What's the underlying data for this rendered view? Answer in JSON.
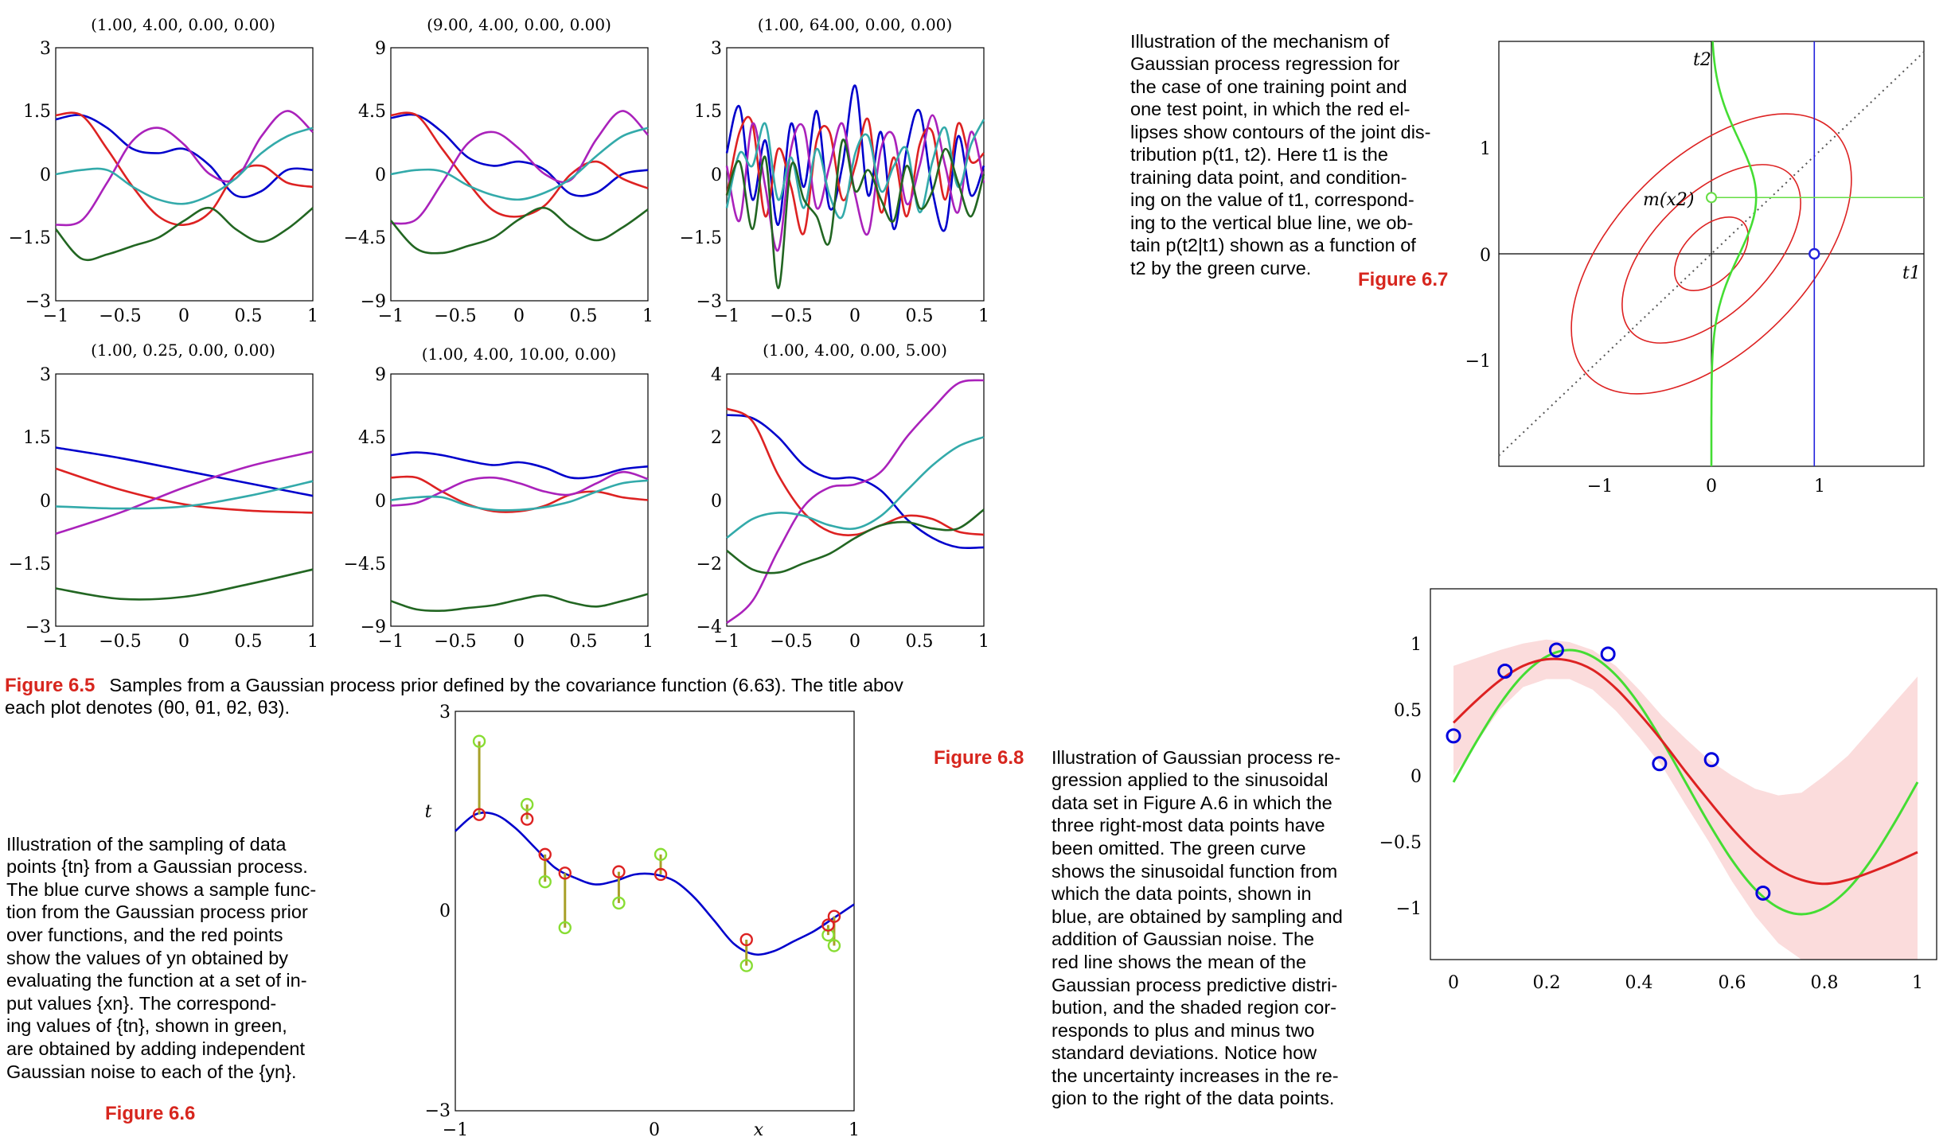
{
  "fig65": {
    "label": "Figure 6.5",
    "caption_line1": "Samples from a Gaussian process prior defined by the covariance function (6.63). The title abov",
    "caption_line2": "each plot denotes (θ0, θ1, θ2, θ3).",
    "panels": [
      {
        "title": "(1.00, 4.00, 0.00, 0.00)",
        "ylim": [
          -3,
          3
        ],
        "yticks": [
          "3",
          "1.5",
          "0",
          "−1.5",
          "−3"
        ]
      },
      {
        "title": "(9.00, 4.00, 0.00, 0.00)",
        "ylim": [
          -9,
          9
        ],
        "yticks": [
          "9",
          "4.5",
          "0",
          "−4.5",
          "−9"
        ]
      },
      {
        "title": "(1.00, 64.00, 0.00, 0.00)",
        "ylim": [
          -3,
          3
        ],
        "yticks": [
          "3",
          "1.5",
          "0",
          "−1.5",
          "−3"
        ]
      },
      {
        "title": "(1.00, 0.25, 0.00, 0.00)",
        "ylim": [
          -3,
          3
        ],
        "yticks": [
          "3",
          "1.5",
          "0",
          "−1.5",
          "−3"
        ]
      },
      {
        "title": "(1.00, 4.00, 10.00, 0.00)",
        "ylim": [
          -9,
          9
        ],
        "yticks": [
          "9",
          "4.5",
          "0",
          "−4.5",
          "−9"
        ]
      },
      {
        "title": "(1.00, 4.00, 0.00, 5.00)",
        "ylim": [
          -4,
          4
        ],
        "yticks": [
          "4",
          "2",
          "0",
          "−2",
          "−4"
        ]
      }
    ],
    "xticks": [
      "−1",
      "−0.5",
      "0",
      "0.5",
      "1"
    ]
  },
  "fig66": {
    "label": "Figure 6.6",
    "caption_lines": [
      "Illustration of the sampling of data",
      "points {tn} from a Gaussian process.",
      "The blue curve shows a sample func-",
      "tion from the Gaussian process prior",
      "over functions, and the red points",
      "show the values of yn obtained by",
      "evaluating the function at a set of in-",
      "put values {xn}.  The correspond-",
      "ing values of {tn}, shown in green,",
      "are obtained by adding independent",
      "Gaussian noise to each of the {yn}."
    ],
    "ylabel": "t",
    "xlabel": "x",
    "yticks": [
      "3",
      "0",
      "−3"
    ],
    "xticks": [
      "−1",
      "0",
      "1"
    ]
  },
  "fig67": {
    "label": "Figure 6.7",
    "caption_lines": [
      "Illustration of the mechanism of",
      "Gaussian process regression for",
      "the case of one training point and",
      "one test point, in which the red el-",
      "lipses show contours of the joint dis-",
      "tribution p(t1, t2).  Here t1 is the",
      "training data point, and condition-",
      "ing on the value of t1, correspond-",
      "ing to the vertical blue line, we ob-",
      "tain p(t2|t1) shown as a function of",
      "t2 by the green curve."
    ],
    "t1_label": "t1",
    "t2_label": "t2",
    "m_label": "m(x2)",
    "yticks": [
      "1",
      "0",
      "−1"
    ],
    "xticks": [
      "−1",
      "0",
      "1"
    ]
  },
  "fig68": {
    "label": "Figure 6.8",
    "caption_lines": [
      "Illustration of Gaussian process re-",
      "gression applied to the sinusoidal",
      "data set in Figure A.6 in which the",
      "three right-most data points have",
      "been omitted.  The green curve",
      "shows the sinusoidal function from",
      "which the data points, shown in",
      "blue, are obtained by sampling and",
      "addition of Gaussian noise.  The",
      "red line shows the mean of the",
      "Gaussian process predictive distri-",
      "bution, and the shaded region cor-",
      "responds to plus and minus two",
      "standard deviations.  Notice how",
      "the uncertainty increases in the re-",
      "gion to the right of the data points."
    ],
    "yticks": [
      "1",
      "0.5",
      "0",
      "−0.5",
      "−1"
    ],
    "xticks": [
      "0",
      "0.2",
      "0.4",
      "0.6",
      "0.8",
      "1"
    ]
  },
  "chart_data": [
    {
      "type": "line",
      "title": "(1.00, 4.00, 0.00, 0.00)",
      "xlim": [
        -1,
        1
      ],
      "ylim": [
        -3,
        3
      ],
      "x": [
        -1,
        -0.8,
        -0.6,
        -0.4,
        -0.2,
        0,
        0.2,
        0.4,
        0.6,
        0.8,
        1
      ],
      "series": [
        {
          "color": "#0000cc",
          "values": [
            1.3,
            1.4,
            1.1,
            0.6,
            0.5,
            0.6,
            0.2,
            -0.5,
            -0.4,
            0.1,
            0.1
          ]
        },
        {
          "color": "#dd2222",
          "values": [
            1.4,
            1.4,
            0.6,
            -0.3,
            -1.0,
            -1.2,
            -0.9,
            0.0,
            0.2,
            -0.2,
            -0.3
          ]
        },
        {
          "color": "#aa22bb",
          "values": [
            -1.2,
            -1.1,
            -0.2,
            0.8,
            1.1,
            0.7,
            0.0,
            -0.1,
            0.9,
            1.5,
            1.0
          ]
        },
        {
          "color": "#33aaaa",
          "values": [
            0.0,
            0.1,
            0.1,
            -0.3,
            -0.6,
            -0.7,
            -0.5,
            -0.1,
            0.5,
            0.9,
            1.1
          ]
        },
        {
          "color": "#226622",
          "values": [
            -1.3,
            -2.0,
            -1.9,
            -1.7,
            -1.5,
            -1.1,
            -0.8,
            -1.3,
            -1.6,
            -1.3,
            -0.8
          ]
        }
      ]
    },
    {
      "type": "line",
      "title": "(9.00, 4.00, 0.00, 0.00)",
      "xlim": [
        -1,
        1
      ],
      "ylim": [
        -9,
        9
      ],
      "x": [
        -1,
        -0.8,
        -0.6,
        -0.4,
        -0.2,
        0,
        0.2,
        0.4,
        0.6,
        0.8,
        1
      ],
      "series": [
        {
          "color": "#0000cc",
          "values": [
            4.0,
            4.2,
            3.0,
            1.2,
            0.6,
            0.9,
            0.3,
            -1.4,
            -1.3,
            0.0,
            0.3
          ]
        },
        {
          "color": "#dd2222",
          "values": [
            4.2,
            4.2,
            1.8,
            -0.6,
            -2.6,
            -3.0,
            -2.2,
            0.0,
            0.9,
            -0.3,
            -1.0
          ]
        },
        {
          "color": "#aa22bb",
          "values": [
            -3.5,
            -3.2,
            -0.6,
            2.2,
            3.0,
            1.8,
            0.0,
            -0.4,
            2.5,
            4.5,
            2.8
          ]
        },
        {
          "color": "#33aaaa",
          "values": [
            0.0,
            0.3,
            0.2,
            -0.8,
            -1.5,
            -1.8,
            -1.3,
            -0.3,
            1.3,
            2.7,
            3.3
          ]
        },
        {
          "color": "#226622",
          "values": [
            -3.3,
            -5.3,
            -5.6,
            -5.1,
            -4.5,
            -3.2,
            -2.4,
            -3.8,
            -4.7,
            -3.8,
            -2.5
          ]
        }
      ]
    },
    {
      "type": "line",
      "title": "(1.00, 64.00, 0.00, 0.00)",
      "xlim": [
        -1,
        1
      ],
      "ylim": [
        -3,
        3
      ],
      "x": [
        -1,
        -0.9,
        -0.8,
        -0.7,
        -0.6,
        -0.5,
        -0.4,
        -0.3,
        -0.2,
        -0.1,
        0,
        0.1,
        0.2,
        0.3,
        0.4,
        0.5,
        0.6,
        0.7,
        0.8,
        0.9,
        1
      ],
      "series": [
        {
          "color": "#0000cc",
          "values": [
            0.5,
            1.6,
            -0.6,
            0.8,
            -1.2,
            1.2,
            -0.3,
            1.5,
            -0.8,
            0.2,
            2.1,
            -0.5,
            1.0,
            -1.3,
            0.6,
            1.5,
            -0.4,
            -1.3,
            0.9,
            -0.5,
            0.2
          ]
        },
        {
          "color": "#dd2222",
          "values": [
            -0.5,
            1.0,
            1.2,
            -1.0,
            0.6,
            -0.3,
            -1.4,
            0.8,
            1.0,
            -0.6,
            0.2,
            1.3,
            -0.9,
            0.4,
            -1.0,
            0.7,
            1.0,
            -0.6,
            1.2,
            0.3,
            0.5
          ]
        },
        {
          "color": "#aa22bb",
          "values": [
            0.2,
            -1.1,
            1.2,
            -0.3,
            -1.8,
            0.6,
            1.1,
            -0.8,
            0.2,
            1.2,
            -0.5,
            -1.4,
            0.6,
            0.9,
            -0.7,
            0.2,
            1.4,
            0.2,
            -0.9,
            1.0,
            -0.2
          ]
        },
        {
          "color": "#33aaaa",
          "values": [
            -0.8,
            0.5,
            0.2,
            1.2,
            -0.6,
            0.4,
            -0.8,
            0.6,
            -0.5,
            -1.0,
            0.5,
            0.9,
            -0.4,
            0.2,
            0.6,
            -0.9,
            0.3,
            1.1,
            -0.3,
            0.7,
            1.3
          ]
        },
        {
          "color": "#226622",
          "values": [
            -0.5,
            0.3,
            -1.3,
            0.4,
            -2.7,
            0.2,
            -0.6,
            -1.0,
            -1.6,
            0.8,
            -0.4,
            0.1,
            -0.6,
            -1.1,
            0.2,
            -0.8,
            -0.4,
            0.6,
            -0.2,
            -1.0,
            0.0
          ]
        }
      ]
    },
    {
      "type": "line",
      "title": "(1.00, 0.25, 0.00, 0.00)",
      "xlim": [
        -1,
        1
      ],
      "ylim": [
        -3,
        3
      ],
      "x": [
        -1,
        -0.5,
        0,
        0.5,
        1
      ],
      "series": [
        {
          "color": "#0000cc",
          "values": [
            1.25,
            1.0,
            0.7,
            0.4,
            0.1
          ]
        },
        {
          "color": "#dd2222",
          "values": [
            0.75,
            0.25,
            -0.1,
            -0.25,
            -0.3
          ]
        },
        {
          "color": "#aa22bb",
          "values": [
            -0.8,
            -0.3,
            0.3,
            0.8,
            1.15
          ]
        },
        {
          "color": "#33aaaa",
          "values": [
            -0.15,
            -0.2,
            -0.15,
            0.1,
            0.45
          ]
        },
        {
          "color": "#226622",
          "values": [
            -2.1,
            -2.35,
            -2.3,
            -2.0,
            -1.65
          ]
        }
      ]
    },
    {
      "type": "line",
      "title": "(1.00, 4.00, 10.00, 0.00)",
      "xlim": [
        -1,
        1
      ],
      "ylim": [
        -9,
        9
      ],
      "x": [
        -1,
        -0.8,
        -0.6,
        -0.4,
        -0.2,
        0,
        0.2,
        0.4,
        0.6,
        0.8,
        1
      ],
      "series": [
        {
          "color": "#0000cc",
          "values": [
            3.2,
            3.4,
            3.2,
            2.8,
            2.5,
            2.7,
            2.3,
            1.6,
            1.7,
            2.2,
            2.4
          ]
        },
        {
          "color": "#dd2222",
          "values": [
            1.6,
            1.6,
            0.6,
            -0.3,
            -0.8,
            -0.8,
            -0.4,
            0.4,
            0.6,
            0.2,
            0.0
          ]
        },
        {
          "color": "#aa22bb",
          "values": [
            -0.4,
            -0.2,
            0.6,
            1.4,
            1.6,
            1.2,
            0.6,
            0.4,
            1.2,
            2.0,
            1.5
          ]
        },
        {
          "color": "#33aaaa",
          "values": [
            0.0,
            0.2,
            0.2,
            -0.4,
            -0.7,
            -0.7,
            -0.5,
            -0.1,
            0.6,
            1.2,
            1.4
          ]
        },
        {
          "color": "#226622",
          "values": [
            -7.2,
            -7.8,
            -7.9,
            -7.7,
            -7.5,
            -7.1,
            -6.8,
            -7.3,
            -7.6,
            -7.2,
            -6.7
          ]
        }
      ]
    },
    {
      "type": "line",
      "title": "(1.00, 4.00, 0.00, 5.00)",
      "xlim": [
        -1,
        1
      ],
      "ylim": [
        -4,
        4
      ],
      "x": [
        -1,
        -0.8,
        -0.6,
        -0.4,
        -0.2,
        0,
        0.2,
        0.4,
        0.6,
        0.8,
        1
      ],
      "series": [
        {
          "color": "#0000cc",
          "values": [
            2.7,
            2.6,
            2.0,
            1.1,
            0.7,
            0.7,
            0.3,
            -0.6,
            -1.2,
            -1.5,
            -1.5
          ]
        },
        {
          "color": "#dd2222",
          "values": [
            2.9,
            2.5,
            0.8,
            -0.4,
            -1.0,
            -1.1,
            -0.8,
            -0.5,
            -0.6,
            -1.0,
            -1.1
          ]
        },
        {
          "color": "#aa22bb",
          "values": [
            -3.9,
            -3.2,
            -1.6,
            -0.2,
            0.4,
            0.5,
            0.9,
            2.0,
            2.9,
            3.7,
            3.8
          ]
        },
        {
          "color": "#33aaaa",
          "values": [
            -1.2,
            -0.6,
            -0.4,
            -0.5,
            -0.8,
            -0.9,
            -0.5,
            0.3,
            1.1,
            1.7,
            2.0
          ]
        },
        {
          "color": "#226622",
          "values": [
            -1.6,
            -2.2,
            -2.3,
            -2.0,
            -1.7,
            -1.2,
            -0.8,
            -0.7,
            -0.9,
            -0.9,
            -0.3
          ]
        }
      ]
    },
    {
      "type": "line",
      "xlabel": "x",
      "ylabel": "t",
      "xlim": [
        -1,
        1
      ],
      "ylim": [
        -3,
        3
      ],
      "curve": {
        "color": "#0000cc",
        "x": [
          -1,
          -0.9,
          -0.8,
          -0.7,
          -0.6,
          -0.5,
          -0.4,
          -0.3,
          -0.2,
          -0.1,
          0,
          0.1,
          0.2,
          0.3,
          0.4,
          0.5,
          0.6,
          0.7,
          0.8,
          0.9,
          1
        ],
        "y": [
          1.2,
          1.45,
          1.45,
          1.25,
          0.95,
          0.65,
          0.5,
          0.4,
          0.45,
          0.55,
          0.55,
          0.45,
          0.2,
          -0.15,
          -0.5,
          -0.65,
          -0.6,
          -0.45,
          -0.3,
          -0.1,
          0.1
        ]
      },
      "y_points": {
        "color": "#dd2222",
        "x": [
          -0.88,
          -0.64,
          -0.55,
          -0.45,
          -0.18,
          0.03,
          0.46,
          0.87,
          0.9
        ],
        "y": [
          1.45,
          1.38,
          0.85,
          0.57,
          0.59,
          0.55,
          -0.43,
          -0.21,
          -0.08
        ]
      },
      "t_points": {
        "color": "#88dd33",
        "x": [
          -0.88,
          -0.64,
          -0.55,
          -0.45,
          -0.18,
          0.03,
          0.46,
          0.87,
          0.9
        ],
        "y": [
          2.55,
          1.6,
          0.44,
          -0.25,
          0.12,
          0.85,
          -0.82,
          -0.36,
          -0.52
        ]
      }
    },
    {
      "type": "line",
      "xlabel": "t1",
      "ylabel": "t2",
      "xlim": [
        -1.9,
        1.9
      ],
      "ylim": [
        -2,
        2
      ],
      "ellipses": {
        "color": "#dd2222",
        "center": [
          0,
          0
        ],
        "angle_deg": 45,
        "semi_axes": [
          [
            0.4,
            0.25
          ],
          [
            1.0,
            0.55
          ],
          [
            1.55,
            0.9
          ]
        ]
      },
      "diagonal": {
        "style": "dotted",
        "slope": 1
      },
      "t1_value": 0.92,
      "m_x2": 0.53,
      "conditional": {
        "color": "#44dd33",
        "mean": 0.53,
        "peak_x": 0.4
      }
    },
    {
      "type": "area",
      "xlim": [
        0,
        1
      ],
      "ylim": [
        -1.4,
        1.1
      ],
      "x": [
        0,
        0.05,
        0.1,
        0.15,
        0.2,
        0.25,
        0.3,
        0.35,
        0.4,
        0.45,
        0.5,
        0.55,
        0.6,
        0.65,
        0.7,
        0.75,
        0.8,
        0.85,
        0.9,
        0.95,
        1
      ],
      "series": [
        {
          "color": "#44dd33",
          "values": [
            0.0,
            0.31,
            0.59,
            0.81,
            0.95,
            1.0,
            0.95,
            0.81,
            0.59,
            0.31,
            0.0,
            -0.31,
            -0.59,
            -0.81,
            -0.95,
            -1.0,
            -0.95,
            -0.81,
            -0.59,
            -0.31,
            0.0
          ]
        },
        {
          "color": "#dd2222",
          "values": [
            0.45,
            0.62,
            0.77,
            0.88,
            0.93,
            0.92,
            0.85,
            0.71,
            0.52,
            0.31,
            0.08,
            -0.14,
            -0.35,
            -0.53,
            -0.66,
            -0.74,
            -0.77,
            -0.74,
            -0.68,
            -0.61,
            -0.53
          ]
        }
      ],
      "band_upper": [
        0.88,
        0.94,
        1.0,
        1.05,
        1.08,
        1.06,
        1.0,
        0.88,
        0.7,
        0.5,
        0.33,
        0.17,
        0.05,
        -0.05,
        -0.1,
        -0.08,
        0.05,
        0.2,
        0.4,
        0.6,
        0.8
      ],
      "band_lower": [
        0.05,
        0.3,
        0.55,
        0.72,
        0.78,
        0.78,
        0.7,
        0.54,
        0.34,
        0.12,
        -0.17,
        -0.45,
        -0.75,
        -1.01,
        -1.22,
        -1.35,
        -1.4,
        -1.4,
        -1.4,
        -1.4,
        -1.4
      ],
      "points": {
        "color": "#0000dd",
        "x": [
          0,
          0.111,
          0.222,
          0.333,
          0.444,
          0.556,
          0.667
        ],
        "y": [
          0.35,
          0.84,
          1.0,
          0.97,
          0.14,
          0.17,
          -0.84
        ]
      }
    }
  ]
}
